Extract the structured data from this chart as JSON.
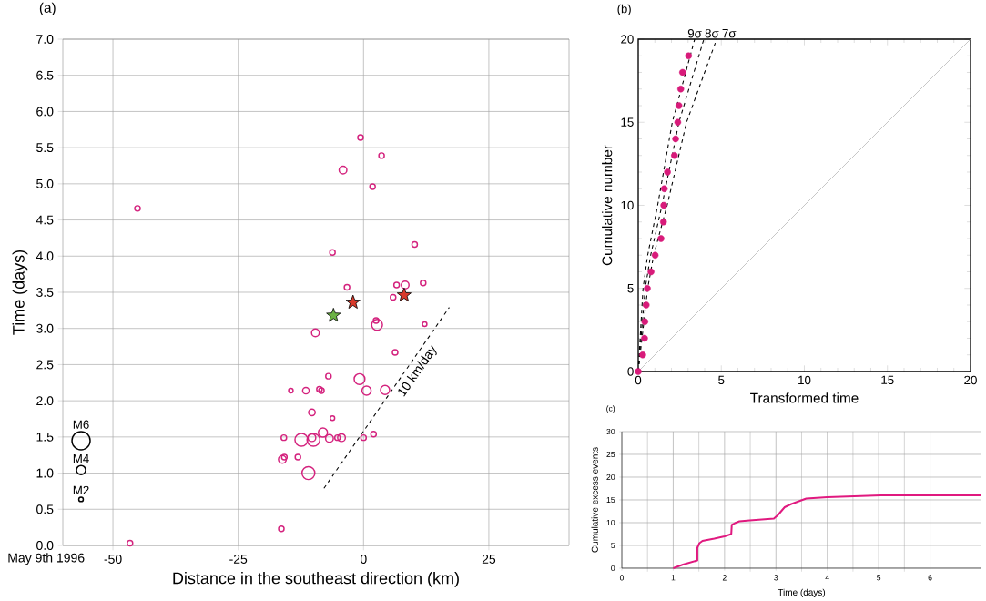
{
  "chart_data": [
    {
      "type": "bubble",
      "title": "(a)",
      "xlabel": "Distance in the southeast direction (km)",
      "ylabel": "Time (days)",
      "xlim": [
        -60,
        41
      ],
      "ylim": [
        0,
        7
      ],
      "xticks": [
        -50,
        -25,
        0,
        25
      ],
      "yticks": [
        {
          "value": 0,
          "label": "0.0"
        },
        {
          "value": 0.5,
          "label": "0.5"
        },
        {
          "value": 1,
          "label": "1.0"
        },
        {
          "value": 1.5,
          "label": "1.5"
        },
        {
          "value": 2,
          "label": "2.0"
        },
        {
          "value": 2.5,
          "label": "2.5"
        },
        {
          "value": 3,
          "label": "3.0"
        },
        {
          "value": 3.5,
          "label": "3.5"
        },
        {
          "value": 4,
          "label": "4.0"
        },
        {
          "value": 4.5,
          "label": "4.5"
        },
        {
          "value": 5,
          "label": "5.0"
        },
        {
          "value": 5.5,
          "label": "5.5"
        },
        {
          "value": 6,
          "label": "6.0"
        },
        {
          "value": 6.5,
          "label": "6.5"
        },
        {
          "value": 7,
          "label": "7.0"
        }
      ],
      "grid": true,
      "annotations": [
        "May 9th 1996"
      ],
      "size_legend": [
        {
          "value": 1,
          "label": "M6"
        },
        {
          "value": 0.25,
          "label": "M4"
        },
        {
          "value": 0.06,
          "label": "M2"
        }
      ],
      "series": [
        {
          "color": "#d4237e",
          "x": [
            -0.6,
            3.6,
            -4.1,
            1.8,
            -45.1,
            10.2,
            -6.2,
            -3.3,
            6.6,
            8.3,
            11.9,
            5.9,
            2.5,
            2.7,
            12.2,
            -9.6,
            6.3,
            -7.0,
            -0.8,
            0.6,
            4.3,
            -14.5,
            -11.5,
            -8.8,
            -8.4,
            -10.3,
            -6.2,
            -15.9,
            -12.4,
            -10.0,
            -10.3,
            -8.1,
            -6.8,
            -5.2,
            -4.4,
            0.0,
            2.0,
            -16.2,
            -15.8,
            -13.1,
            -11.0,
            -16.4,
            -46.6
          ],
          "values": [
            5.64,
            5.39,
            5.19,
            4.96,
            4.66,
            4.16,
            4.05,
            3.57,
            3.6,
            3.6,
            3.63,
            3.43,
            3.11,
            3.05,
            3.06,
            2.94,
            2.67,
            2.34,
            2.3,
            2.14,
            2.15,
            2.14,
            2.14,
            2.16,
            2.14,
            1.84,
            1.76,
            1.49,
            1.46,
            1.46,
            1.49,
            1.56,
            1.48,
            1.49,
            1.49,
            1.49,
            1.54,
            1.19,
            1.22,
            1.22,
            1.0,
            0.23,
            0.03
          ],
          "sizes": [
            0.09,
            0.09,
            0.18,
            0.09,
            0.09,
            0.09,
            0.09,
            0.09,
            0.09,
            0.18,
            0.09,
            0.09,
            0.09,
            0.35,
            0.06,
            0.18,
            0.09,
            0.09,
            0.35,
            0.25,
            0.25,
            0.06,
            0.13,
            0.09,
            0.09,
            0.13,
            0.06,
            0.09,
            0.5,
            0.5,
            0.18,
            0.25,
            0.18,
            0.09,
            0.18,
            0.09,
            0.09,
            0.18,
            0.09,
            0.09,
            0.5,
            0.09,
            0.09
          ]
        },
        {
          "type": "scatter",
          "marker": "star",
          "color": "#d93a2b",
          "x": [
            -2.1,
            8.1
          ],
          "values": [
            3.36,
            3.46
          ]
        },
        {
          "type": "scatter",
          "marker": "star",
          "color": "#6cb245",
          "x": [
            -6.0
          ],
          "values": [
            3.18
          ]
        },
        {
          "type": "line",
          "name": "10 km/day",
          "line_style": "dashed",
          "color": "#000000",
          "x": [
            -7.9,
            17.1
          ],
          "values": [
            0.79,
            3.29
          ]
        }
      ]
    },
    {
      "type": "scatter",
      "title": "(b)",
      "xlabel": "Transformed time",
      "ylabel": "Cumulative number",
      "xlim": [
        0,
        20
      ],
      "ylim": [
        0,
        20
      ],
      "xticks": [
        0,
        5,
        10,
        15,
        20
      ],
      "yticks": [
        0,
        5,
        10,
        15,
        20
      ],
      "series": [
        {
          "type": "line",
          "color": "#aaaaaa",
          "x": [
            0,
            20
          ],
          "values": [
            0,
            20
          ]
        },
        {
          "type": "line",
          "name": "9σ",
          "line_style": "dashed",
          "color": "#000000",
          "x": [
            0,
            0.29,
            0.57,
            1.17,
            2.05,
            3.4
          ],
          "values": [
            0,
            5,
            7,
            10,
            15,
            20
          ]
        },
        {
          "type": "line",
          "name": "8σ",
          "line_style": "dashed",
          "color": "#000000",
          "x": [
            0,
            0.42,
            0.75,
            1.43,
            2.45,
            3.95
          ],
          "values": [
            0,
            5,
            7,
            10,
            15,
            20
          ]
        },
        {
          "type": "line",
          "name": "7σ",
          "line_style": "dashed",
          "color": "#000000",
          "x": [
            0,
            0.57,
            0.93,
            1.74,
            2.91,
            4.72
          ],
          "values": [
            0,
            5,
            7,
            10,
            15,
            20
          ]
        },
        {
          "marker": "circle",
          "color": "#d81b7a",
          "x": [
            0,
            0.27,
            0.38,
            0.4,
            0.48,
            0.55,
            0.77,
            1.02,
            1.37,
            1.52,
            1.54,
            1.57,
            1.76,
            2.18,
            2.25,
            2.38,
            2.45,
            2.56,
            2.67,
            3.03
          ],
          "values": [
            0,
            1,
            2,
            3,
            4,
            5,
            6,
            7,
            8,
            9,
            10,
            11,
            12,
            13,
            14,
            15,
            16,
            17,
            18,
            19
          ]
        }
      ]
    },
    {
      "type": "line",
      "title": "(c)",
      "xlabel": "Time (days)",
      "ylabel": "Cumulative excess events",
      "xlim": [
        0,
        7
      ],
      "ylim": [
        0,
        30
      ],
      "xticks": [
        0,
        1,
        2,
        3,
        4,
        5,
        6
      ],
      "yticks": [
        0,
        5,
        10,
        15,
        20,
        25,
        30
      ],
      "grid": true,
      "series": [
        {
          "color": "#e0197f",
          "x": [
            1.0,
            1.19,
            1.47,
            1.47,
            1.51,
            1.57,
            1.8,
            2.0,
            2.13,
            2.14,
            2.2,
            2.29,
            2.49,
            2.96,
            3.04,
            3.17,
            3.3,
            3.59,
            4.0,
            5.04,
            7.0
          ],
          "values": [
            0,
            0.8,
            1.7,
            4.5,
            5.5,
            6.0,
            6.5,
            7.0,
            7.5,
            9.5,
            9.9,
            10.3,
            10.5,
            10.9,
            11.7,
            13.4,
            14.1,
            15.3,
            15.6,
            16.0,
            16.0
          ]
        }
      ]
    }
  ]
}
